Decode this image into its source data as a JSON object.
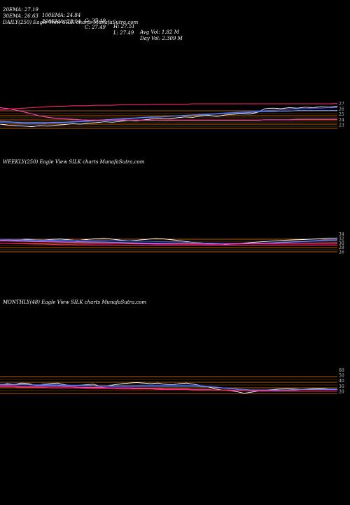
{
  "header": {
    "row1": [
      "20EMA: 27.19",
      "100EMA: 24.84",
      "C: 27.49",
      "H: 27.51",
      "Avg Vol: 1.82  M"
    ],
    "row2": [
      "30EMA: 26.63",
      "200EMA: 28.04",
      "C: 27.49",
      "L: 27.49",
      "Day Vol: 2.309 M"
    ]
  },
  "panels": [
    {
      "title": "DAILY(250) Eagle   View  SILK charts MunafaSutra.com",
      "tick_labels": [
        "27",
        "26",
        "25",
        "24",
        "23"
      ]
    },
    {
      "title": "WEEKLY(250) Eagle   View  SILK charts MunafaSutra.com",
      "tick_labels": [
        "34",
        "32",
        "30",
        "28",
        "26"
      ]
    },
    {
      "title": "MONTHLY(48) Eagle   View  SILK charts MunafaSutra.com",
      "tick_labels": [
        "60",
        "50",
        "40",
        "30",
        "20"
      ]
    }
  ],
  "colors": {
    "background": "#000000",
    "price": "#ffffff",
    "ema20": "#3a5bd9",
    "ema30": "#6a8cff",
    "ema100": "#ff44cc",
    "ema200": "#ff2266",
    "bands": "#c86a10"
  },
  "chart_data": [
    {
      "type": "line",
      "title": "DAILY(250) Eagle   View  SILK charts MunafaSutra.com",
      "ylim": [
        22.5,
        28
      ],
      "grid": false,
      "series": [
        {
          "values": [
            23.8,
            23.6,
            23.5,
            23.4,
            23.3,
            23.5,
            23.4,
            23.6,
            23.7,
            23.9,
            23.8,
            24.0,
            24.1,
            24.3,
            24.2,
            24.4,
            24.6,
            24.5,
            24.7,
            24.9,
            25.0,
            24.9,
            25.1,
            25.3,
            25.2,
            25.5,
            25.6,
            25.4,
            25.7,
            25.8,
            26.0,
            25.9,
            26.2,
            27.0,
            27.1,
            27.0,
            27.2,
            27.1,
            27.3,
            27.2,
            27.4,
            27.3,
            27.49
          ]
        },
        {
          "values": [
            24.2,
            24.1,
            24.0,
            23.9,
            23.9,
            23.9,
            24.0,
            24.0,
            24.1,
            24.2,
            24.3,
            24.4,
            24.5,
            24.6,
            24.7,
            24.8,
            24.9,
            25.0,
            25.1,
            25.2,
            25.3,
            25.4,
            25.5,
            25.6,
            25.7,
            25.8,
            25.9,
            26.0,
            26.1,
            26.2,
            26.3,
            26.4,
            26.5,
            26.6,
            26.7,
            26.8,
            26.9,
            27.0,
            27.0,
            27.1,
            27.1,
            27.2,
            27.19
          ]
        },
        {
          "values": [
            24.4,
            24.3,
            24.2,
            24.1,
            24.1,
            24.1,
            24.1,
            24.2,
            24.2,
            24.3,
            24.4,
            24.5,
            24.6,
            24.7,
            24.8,
            24.9,
            25.0,
            25.1,
            25.2,
            25.3,
            25.3,
            25.4,
            25.5,
            25.6,
            25.7,
            25.7,
            25.8,
            25.9,
            26.0,
            26.1,
            26.1,
            26.2,
            26.3,
            26.4,
            26.4,
            26.5,
            26.5,
            26.6,
            26.6,
            26.6,
            26.6,
            26.6,
            26.63
          ]
        },
        {
          "values": [
            27.2,
            27.0,
            26.7,
            26.3,
            25.9,
            25.5,
            25.2,
            25.0,
            24.9,
            24.8,
            24.7,
            24.6,
            24.6,
            24.6,
            24.6,
            24.6,
            24.6,
            24.6,
            24.6,
            24.6,
            24.6,
            24.6,
            24.6,
            24.6,
            24.6,
            24.6,
            24.6,
            24.6,
            24.6,
            24.6,
            24.6,
            24.6,
            24.6,
            24.7,
            24.7,
            24.7,
            24.7,
            24.8,
            24.8,
            24.8,
            24.8,
            24.8,
            24.84
          ]
        },
        {
          "values": [
            26.8,
            26.9,
            27.0,
            27.1,
            27.2,
            27.3,
            27.4,
            27.5,
            27.5,
            27.6,
            27.6,
            27.6,
            27.7,
            27.7,
            27.7,
            27.8,
            27.8,
            27.8,
            27.8,
            27.9,
            27.9,
            27.9,
            27.9,
            27.9,
            28.0,
            28.0,
            28.0,
            28.0,
            28.0,
            28.0,
            28.0,
            28.0,
            28.0,
            28.0,
            28.0,
            28.0,
            28.0,
            28.0,
            28.0,
            28.0,
            28.0,
            28.0,
            28.04
          ]
        }
      ]
    },
    {
      "type": "line",
      "title": "WEEKLY(250) Eagle   View  SILK charts MunafaSutra.com",
      "ylim": [
        24,
        36
      ],
      "grid": false,
      "series": [
        {
          "values": [
            33.0,
            33.2,
            32.9,
            33.4,
            33.1,
            32.8,
            33.3,
            33.5,
            33.0,
            32.7,
            33.2,
            33.6,
            33.8,
            33.4,
            32.8,
            32.5,
            32.9,
            33.3,
            33.7,
            33.5,
            33.0,
            32.4,
            31.8,
            31.5,
            31.2,
            31.0,
            30.6,
            30.8,
            31.2,
            31.6,
            31.9,
            32.2,
            32.5,
            32.8,
            33.0,
            33.2,
            33.4,
            33.6,
            33.9,
            34.0
          ]
        },
        {
          "values": [
            33.2,
            33.1,
            33.1,
            33.0,
            33.0,
            32.9,
            32.9,
            32.9,
            32.8,
            32.8,
            32.8,
            32.8,
            32.7,
            32.6,
            32.5,
            32.4,
            32.3,
            32.2,
            32.1,
            32.0,
            31.9,
            31.8,
            31.6,
            31.4,
            31.3,
            31.2,
            31.1,
            31.0,
            31.0,
            31.1,
            31.2,
            31.4,
            31.6,
            31.8,
            32.0,
            32.2,
            32.5,
            32.8,
            33.1,
            33.3
          ]
        },
        {
          "values": [
            32.8,
            32.7,
            32.6,
            32.6,
            32.5,
            32.4,
            32.4,
            32.3,
            32.2,
            32.1,
            32.0,
            31.9,
            31.8,
            31.7,
            31.6,
            31.5,
            31.4,
            31.3,
            31.2,
            31.1,
            31.0,
            30.9,
            30.8,
            30.8,
            30.7,
            30.7,
            30.7,
            30.8,
            30.9,
            31.0,
            31.1,
            31.3,
            31.5,
            31.7,
            31.9,
            32.1,
            32.3,
            32.5,
            32.7,
            32.9
          ]
        },
        {
          "values": [
            32.5,
            32.4,
            32.3,
            32.2,
            32.1,
            32.0,
            31.9,
            31.8,
            31.7,
            31.6,
            31.5,
            31.4,
            31.3,
            31.2,
            31.1,
            31.0,
            30.9,
            30.9,
            30.8,
            30.8,
            30.8,
            30.8,
            30.8,
            30.8,
            30.8,
            30.8,
            30.8,
            30.9,
            30.9,
            31.0,
            31.0,
            31.1,
            31.1,
            31.2,
            31.2,
            31.3,
            31.3,
            31.4,
            31.4,
            31.5
          ]
        },
        {
          "values": [
            31.2,
            31.1,
            31.0,
            30.9,
            30.8,
            30.7,
            30.6,
            30.5,
            30.5,
            30.4,
            30.4,
            30.3,
            30.3,
            30.3,
            30.2,
            30.2,
            30.2,
            30.2,
            30.2,
            30.2,
            30.2,
            30.2,
            30.2,
            30.2,
            30.2,
            30.2,
            30.2,
            30.2,
            30.2,
            30.2,
            30.2,
            30.3,
            30.3,
            30.3,
            30.3,
            30.3,
            30.3,
            30.3,
            30.3,
            30.3
          ]
        }
      ]
    },
    {
      "type": "line",
      "title": "MONTHLY(48) Eagle   View  SILK charts MunafaSutra.com",
      "ylim": [
        15,
        65
      ],
      "grid": false,
      "series": [
        {
          "values": [
            38,
            40,
            39,
            41,
            40,
            37,
            39,
            40,
            41,
            38,
            36,
            37,
            38,
            39,
            35,
            36,
            38,
            40,
            41,
            42,
            41,
            40,
            41,
            39,
            38,
            40,
            41,
            39,
            36,
            34,
            30,
            28,
            27,
            25,
            22,
            24,
            26,
            28,
            29,
            30,
            31,
            30,
            29,
            30,
            31,
            31,
            30,
            30
          ]
        },
        {
          "values": [
            39,
            39,
            39,
            39,
            38,
            38,
            38,
            38,
            38,
            37,
            37,
            37,
            37,
            36,
            36,
            36,
            36,
            36,
            36,
            36,
            37,
            37,
            37,
            37,
            37,
            37,
            37,
            37,
            36,
            35,
            34,
            32,
            31,
            29,
            27,
            26,
            26,
            27,
            27,
            28,
            28,
            29,
            29,
            29,
            29,
            30,
            30,
            30
          ]
        },
        {
          "values": [
            38,
            38,
            38,
            38,
            38,
            37,
            37,
            37,
            37,
            36,
            36,
            36,
            36,
            36,
            35,
            35,
            35,
            35,
            35,
            35,
            35,
            35,
            35,
            35,
            35,
            35,
            35,
            35,
            34,
            34,
            33,
            32,
            31,
            30,
            29,
            28,
            28,
            28,
            28,
            28,
            28,
            28,
            29,
            29,
            29,
            29,
            29,
            29
          ]
        },
        {
          "values": [
            36,
            36,
            36,
            35,
            35,
            35,
            35,
            34,
            34,
            34,
            34,
            33,
            33,
            33,
            33,
            32,
            32,
            32,
            32,
            31,
            31,
            31,
            31,
            30,
            30,
            30,
            30,
            29,
            29,
            29,
            28,
            28,
            28,
            27,
            27,
            27,
            26,
            26,
            26,
            26,
            26,
            26,
            26,
            26,
            26,
            26,
            26,
            26
          ]
        },
        {
          "values": [
            34,
            34,
            34,
            33,
            33,
            33,
            33,
            32,
            32,
            32,
            32,
            32,
            31,
            31,
            31,
            31,
            31,
            30,
            30,
            30,
            30,
            30,
            29,
            29,
            29,
            29,
            29,
            28,
            28,
            28,
            28,
            28,
            27,
            27,
            27,
            27,
            27,
            27,
            26,
            26,
            26,
            26,
            26,
            26,
            26,
            26,
            26,
            26
          ]
        }
      ]
    }
  ]
}
